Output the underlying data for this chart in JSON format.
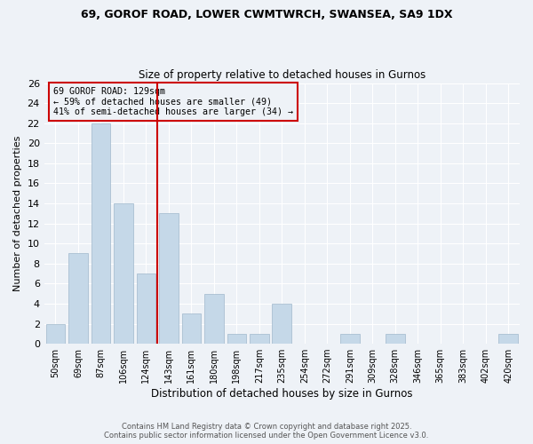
{
  "title1": "69, GOROF ROAD, LOWER CWMTWRCH, SWANSEA, SA9 1DX",
  "title2": "Size of property relative to detached houses in Gurnos",
  "xlabel": "Distribution of detached houses by size in Gurnos",
  "ylabel": "Number of detached properties",
  "bar_labels": [
    "50sqm",
    "69sqm",
    "87sqm",
    "106sqm",
    "124sqm",
    "143sqm",
    "161sqm",
    "180sqm",
    "198sqm",
    "217sqm",
    "235sqm",
    "254sqm",
    "272sqm",
    "291sqm",
    "309sqm",
    "328sqm",
    "346sqm",
    "365sqm",
    "383sqm",
    "402sqm",
    "420sqm"
  ],
  "bar_values": [
    2,
    9,
    22,
    14,
    7,
    13,
    3,
    5,
    1,
    1,
    4,
    0,
    0,
    1,
    0,
    1,
    0,
    0,
    0,
    0,
    1
  ],
  "bar_color": "#c5d8e8",
  "bar_edgecolor": "#a0b8cc",
  "vline_x": 4.5,
  "vline_color": "#cc0000",
  "annotation_title": "69 GOROF ROAD: 129sqm",
  "annotation_line1": "← 59% of detached houses are smaller (49)",
  "annotation_line2": "41% of semi-detached houses are larger (34) →",
  "annotation_box_edgecolor": "#cc0000",
  "ylim": [
    0,
    26
  ],
  "yticks": [
    0,
    2,
    4,
    6,
    8,
    10,
    12,
    14,
    16,
    18,
    20,
    22,
    24,
    26
  ],
  "footnote1": "Contains HM Land Registry data © Crown copyright and database right 2025.",
  "footnote2": "Contains public sector information licensed under the Open Government Licence v3.0.",
  "bg_color": "#eef2f7"
}
